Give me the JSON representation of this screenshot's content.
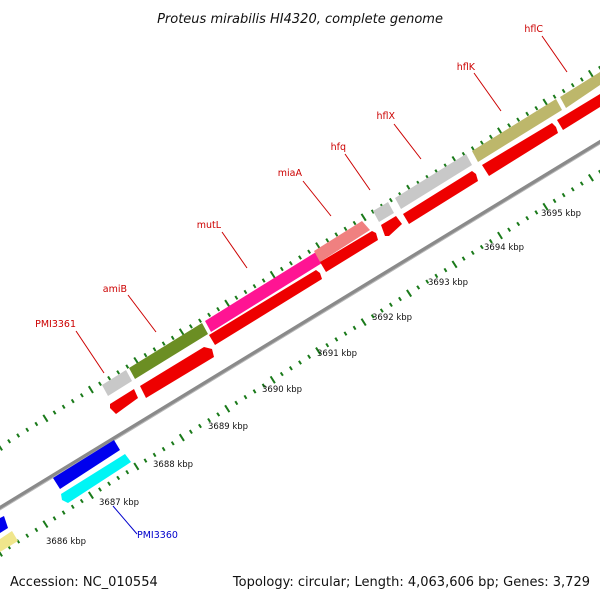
{
  "title": "Proteus mirabilis HI4320, complete genome",
  "accession": "Accession: NC_010554",
  "topology": "Topology: circular; Length: 4,063,606 bp; Genes: 3,729",
  "colors": {
    "backbone": "#808080",
    "tick": "#1a7a1a",
    "forward_label": "#cc0000",
    "reverse_label": "#0000cc"
  },
  "kbp_labels": [
    "3686 kbp",
    "3687 kbp",
    "3688 kbp",
    "3689 kbp",
    "3690 kbp",
    "3691 kbp",
    "3692 kbp",
    "3693 kbp",
    "3694 kbp",
    "3695 kbp"
  ],
  "gene_labels": {
    "pmi3361": "PMI3361",
    "amib": "amiB",
    "mutl": "mutL",
    "miaa": "miaA",
    "hfq": "hfq",
    "hflx": "hflX",
    "hflk": "hflK",
    "hflc": "hflC",
    "pmi3360": "PMI3360"
  }
}
